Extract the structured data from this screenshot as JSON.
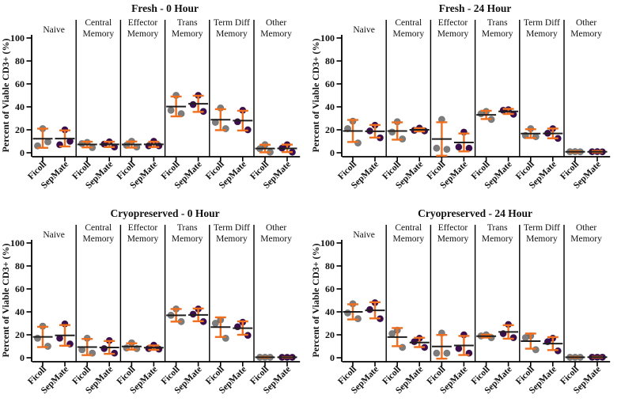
{
  "figure": {
    "ylabel": "Percent of Viable CD3+ (%)",
    "yticks": [
      0,
      20,
      40,
      60,
      80,
      100
    ],
    "categories": [
      "Naive",
      "Central Memory",
      "Effector Memory",
      "Trans Memory",
      "Term Diff Memory",
      "Other Memory"
    ],
    "category_lines": [
      [
        "Naive"
      ],
      [
        "Central",
        "Memory"
      ],
      [
        "Effector",
        "Memory"
      ],
      [
        "Trans",
        "Memory"
      ],
      [
        "Term Diff",
        "Memory"
      ],
      [
        "Other",
        "Memory"
      ]
    ],
    "conditions": [
      "Ficoll",
      "SepMate"
    ],
    "colors": {
      "ficoll_point": "#7d7d7d",
      "sepmate_point": "#3b0c4e",
      "error_bar": "#ef6f1e",
      "mean_line": "#1f1f1f",
      "axis": "#000000"
    }
  },
  "chart_data": [
    {
      "type": "scatter",
      "title": "Fresh - 0 Hour",
      "ylabel": "Percent of Viable CD3+ (%)",
      "ylim": [
        0,
        100
      ],
      "yticks": [
        0,
        20,
        40,
        60,
        80,
        100
      ],
      "categories": [
        "Naive",
        "Central Memory",
        "Effector Memory",
        "Trans Memory",
        "Term Diff Memory",
        "Other Memory"
      ],
      "series": [
        {
          "name": "Ficoll",
          "groups": [
            {
              "points": [
                21,
                6,
                9.5
              ],
              "mean": 12.2,
              "sd_high": 21.0,
              "sd_low": 4.3
            },
            {
              "points": [
                9,
                8,
                4.5
              ],
              "mean": 7.2,
              "sd_high": 9.6,
              "sd_low": 4.7
            },
            {
              "points": [
                10,
                6.5,
                5
              ],
              "mean": 7.2,
              "sd_high": 9.8,
              "sd_low": 4.5
            },
            {
              "points": [
                50,
                37,
                34
              ],
              "mean": 40.3,
              "sd_high": 49.0,
              "sd_low": 31.7
            },
            {
              "points": [
                39,
                26.5,
                21
              ],
              "mean": 28.8,
              "sd_high": 38.0,
              "sd_low": 19.7
            },
            {
              "points": [
                7,
                3.5,
                0.5
              ],
              "mean": 3.7,
              "sd_high": 7.0,
              "sd_low": 0.4
            }
          ]
        },
        {
          "name": "SepMate",
          "groups": [
            {
              "points": [
                20,
                7,
                10
              ],
              "mean": 12.3,
              "sd_high": 19.5,
              "sd_low": 5.5
            },
            {
              "points": [
                9.5,
                7.5,
                5
              ],
              "mean": 7.3,
              "sd_high": 9.6,
              "sd_low": 5.0
            },
            {
              "points": [
                10,
                6,
                6
              ],
              "mean": 7.3,
              "sd_high": 9.6,
              "sd_low": 5.0
            },
            {
              "points": [
                50,
                42,
                36
              ],
              "mean": 42.7,
              "sd_high": 49.7,
              "sd_low": 35.6
            },
            {
              "points": [
                37,
                27,
                20
              ],
              "mean": 28.0,
              "sd_high": 36.6,
              "sd_low": 19.4
            },
            {
              "points": [
                7,
                4,
                0.5
              ],
              "mean": 3.8,
              "sd_high": 7.1,
              "sd_low": 0.6
            }
          ]
        }
      ]
    },
    {
      "type": "scatter",
      "title": "Fresh - 24 Hour",
      "ylabel": "Percent of Viable CD3+ (%)",
      "ylim": [
        0,
        100
      ],
      "yticks": [
        0,
        20,
        40,
        60,
        80,
        100
      ],
      "categories": [
        "Naive",
        "Central Memory",
        "Effector Memory",
        "Trans Memory",
        "Term Diff Memory",
        "Other Memory"
      ],
      "series": [
        {
          "name": "Ficoll",
          "groups": [
            {
              "points": [
                27.5,
                21,
                8.5
              ],
              "mean": 19.0,
              "sd_high": 28.6,
              "sd_low": 9.4
            },
            {
              "points": [
                27,
                18,
                12
              ],
              "mean": 19.0,
              "sd_high": 26.5,
              "sd_low": 11.4
            },
            {
              "points": [
                29,
                4,
                3
              ],
              "mean": 12.0,
              "sd_high": 26.6,
              "sd_low": -2.6
            },
            {
              "points": [
                36,
                34,
                29
              ],
              "mean": 33.0,
              "sd_high": 36.6,
              "sd_low": 29.4
            },
            {
              "points": [
                21,
                15,
                14
              ],
              "mean": 16.7,
              "sd_high": 20.5,
              "sd_low": 12.9
            },
            {
              "points": [
                1,
                0.9,
                0.8
              ],
              "mean": 0.9,
              "sd_high": 1.4,
              "sd_low": 0.4
            }
          ]
        },
        {
          "name": "SepMate",
          "groups": [
            {
              "points": [
                24,
                19,
                13
              ],
              "mean": 18.7,
              "sd_high": 24.2,
              "sd_low": 13.2
            },
            {
              "points": [
                21.5,
                19.5,
                19
              ],
              "mean": 20.0,
              "sd_high": 21.4,
              "sd_low": 18.6
            },
            {
              "points": [
                18,
                5,
                4
              ],
              "mean": 9.0,
              "sd_high": 16.8,
              "sd_low": 1.2
            },
            {
              "points": [
                37.5,
                37,
                33.5
              ],
              "mean": 36.0,
              "sd_high": 38.2,
              "sd_low": 33.8
            },
            {
              "points": [
                21,
                17,
                12.5
              ],
              "mean": 16.8,
              "sd_high": 21.1,
              "sd_low": 12.6
            },
            {
              "points": [
                1,
                0.9,
                0.8
              ],
              "mean": 0.9,
              "sd_high": 1.6,
              "sd_low": 0.3
            }
          ]
        }
      ]
    },
    {
      "type": "scatter",
      "title": "Cryopreserved - 0 Hour",
      "ylabel": "Percent of Viable CD3+ (%)",
      "ylim": [
        0,
        100
      ],
      "yticks": [
        0,
        20,
        40,
        60,
        80,
        100
      ],
      "categories": [
        "Naive",
        "Central Memory",
        "Effector Memory",
        "Trans Memory",
        "Term Diff Memory",
        "Other Memory"
      ],
      "series": [
        {
          "name": "Ficoll",
          "groups": [
            {
              "points": [
                27.5,
                17,
                10
              ],
              "mean": 18.2,
              "sd_high": 27.0,
              "sd_low": 9.3
            },
            {
              "points": [
                17,
                7,
                4
              ],
              "mean": 9.3,
              "sd_high": 16.4,
              "sd_low": 2.3
            },
            {
              "points": [
                13,
                8.5,
                8
              ],
              "mean": 9.8,
              "sd_high": 12.6,
              "sd_low": 7.1
            },
            {
              "points": [
                42.5,
                37,
                31.5
              ],
              "mean": 37.0,
              "sd_high": 42.5,
              "sd_low": 31.5
            },
            {
              "points": [
                33,
                30,
                17
              ],
              "mean": 26.7,
              "sd_high": 35.2,
              "sd_low": 18.1
            },
            {
              "points": [
                0.4,
                0.4,
                0.4
              ],
              "mean": 0.4,
              "sd_high": 0.7,
              "sd_low": 0.1
            }
          ]
        },
        {
          "name": "SepMate",
          "groups": [
            {
              "points": [
                29.5,
                17,
                12
              ],
              "mean": 19.5,
              "sd_high": 28.5,
              "sd_low": 10.5
            },
            {
              "points": [
                15,
                8,
                4
              ],
              "mean": 9.0,
              "sd_high": 14.6,
              "sd_low": 3.4
            },
            {
              "points": [
                11,
                8,
                7.5
              ],
              "mean": 8.8,
              "sd_high": 10.7,
              "sd_low": 6.9
            },
            {
              "points": [
                42.5,
                38,
                31.5
              ],
              "mean": 37.3,
              "sd_high": 42.9,
              "sd_low": 31.8
            },
            {
              "points": [
                31,
                27,
                19.5
              ],
              "mean": 25.8,
              "sd_high": 31.7,
              "sd_low": 20.0
            },
            {
              "points": [
                0.4,
                0.4,
                0.4
              ],
              "mean": 0.4,
              "sd_high": 0.6,
              "sd_low": 0.2
            }
          ]
        }
      ]
    },
    {
      "type": "scatter",
      "title": "Cryopreserved - 24 Hour",
      "ylabel": "Percent of Viable CD3+ (%)",
      "ylim": [
        0,
        100
      ],
      "yticks": [
        0,
        20,
        40,
        60,
        80,
        100
      ],
      "categories": [
        "Naive",
        "Central Memory",
        "Effector Memory",
        "Trans Memory",
        "Term Diff Memory",
        "Other Memory"
      ],
      "series": [
        {
          "name": "Ficoll",
          "groups": [
            {
              "points": [
                47,
                39,
                34
              ],
              "mean": 40.0,
              "sd_high": 46.6,
              "sd_low": 33.4
            },
            {
              "points": [
                24,
                21,
                9
              ],
              "mean": 18.0,
              "sd_high": 25.9,
              "sd_low": 10.1
            },
            {
              "points": [
                21.5,
                4,
                4
              ],
              "mean": 9.8,
              "sd_high": 19.9,
              "sd_low": -0.8
            },
            {
              "points": [
                20,
                19,
                17.5
              ],
              "mean": 18.8,
              "sd_high": 20.1,
              "sd_low": 17.6
            },
            {
              "points": [
                19,
                17.5,
                7
              ],
              "mean": 14.5,
              "sd_high": 21.1,
              "sd_low": 7.9
            },
            {
              "points": [
                0.4,
                0.4,
                0.4
              ],
              "mean": 0.4,
              "sd_high": 0.7,
              "sd_low": 0.1
            }
          ]
        },
        {
          "name": "SepMate",
          "groups": [
            {
              "points": [
                48,
                42,
                34
              ],
              "mean": 41.3,
              "sd_high": 48.4,
              "sd_low": 34.3
            },
            {
              "points": [
                17,
                14,
                9
              ],
              "mean": 13.3,
              "sd_high": 17.4,
              "sd_low": 9.3
            },
            {
              "points": [
                20,
                8,
                4
              ],
              "mean": 10.7,
              "sd_high": 19.0,
              "sd_low": 2.4
            },
            {
              "points": [
                29,
                21,
                17.5
              ],
              "mean": 22.5,
              "sd_high": 28.4,
              "sd_low": 16.6
            },
            {
              "points": [
                17,
                14,
                6
              ],
              "mean": 12.3,
              "sd_high": 18.0,
              "sd_low": 6.7
            },
            {
              "points": [
                0.5,
                0.5,
                0.5
              ],
              "mean": 0.5,
              "sd_high": 0.8,
              "sd_low": 0.2
            }
          ]
        }
      ]
    }
  ]
}
